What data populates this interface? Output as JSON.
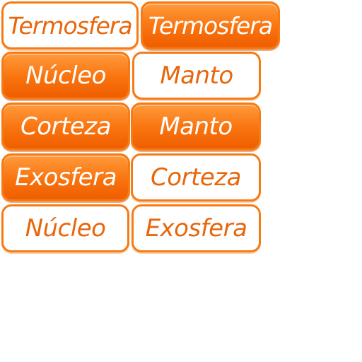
{
  "tiles": [
    {
      "label": "Termosfera",
      "style": "outline"
    },
    {
      "label": "Termosfera",
      "style": "filled"
    },
    {
      "label": "Núcleo",
      "style": "filled"
    },
    {
      "label": "Manto",
      "style": "outline"
    },
    {
      "label": "Corteza",
      "style": "filled"
    },
    {
      "label": "Manto",
      "style": "filled"
    },
    {
      "label": "Exosfera",
      "style": "filled"
    },
    {
      "label": "Corteza",
      "style": "outline"
    },
    {
      "label": "Núcleo",
      "style": "outline"
    },
    {
      "label": "Exosfera",
      "style": "outline"
    }
  ],
  "colors": {
    "accent": "#f57b16",
    "fill_top": "#ff9a3c",
    "fill_bottom": "#ef5e00",
    "outline_text": "#e8660c",
    "filled_text": "#ffffff"
  }
}
